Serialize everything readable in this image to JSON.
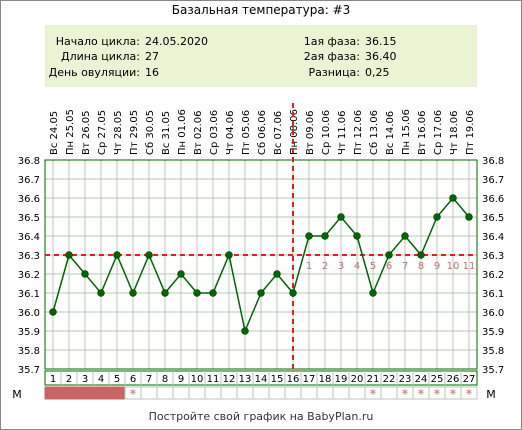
{
  "title": "Базальная температура: #3",
  "info": {
    "left": [
      {
        "label": "Начало цикла:",
        "value": "24.05.2020"
      },
      {
        "label": "Длина цикла:",
        "value": "27"
      },
      {
        "label": "День овуляции:",
        "value": "16"
      }
    ],
    "right": [
      {
        "label": "1ая фаза:",
        "value": "36.15"
      },
      {
        "label": "2ая фаза:",
        "value": "36.40"
      },
      {
        "label": "Разница:",
        "value": "0,25"
      }
    ]
  },
  "footer": "Постройте свой график на BabyPlan.ru",
  "m_label": "М",
  "colors": {
    "line": "#006400",
    "point": "#006400",
    "grid": "#b4c8b4",
    "axis": "#006400",
    "dashed": "#e02020",
    "phase_label": "#c87070",
    "header_bg": "#eaf4d4",
    "m_fill": "#c86464",
    "m_star": "#d05050",
    "border": "#888888"
  },
  "chart_data": {
    "type": "line",
    "title": "Базальная температура: #3",
    "x_dates": [
      "Вс 24.05",
      "Пн 25.05",
      "Вт 26.05",
      "Ср 27.05",
      "Чт 28.05",
      "Пт 29.05",
      "Сб 30.05",
      "Вс 31.05",
      "Пн 01.06",
      "Вт 02.06",
      "Ср 03.06",
      "Чт 04.06",
      "Пт 05.06",
      "Сб 06.06",
      "Вс 07.06",
      "Пн 08.06",
      "Вт 09.06",
      "Ср 10.06",
      "Чт 11.06",
      "Пт 12.06",
      "Сб 13.06",
      "Вс 14.06",
      "Пн 15.06",
      "Вт 16.06",
      "Ср 17.06",
      "Чт 18.06",
      "Пт 19.06"
    ],
    "x_days": [
      1,
      2,
      3,
      4,
      5,
      6,
      7,
      8,
      9,
      10,
      11,
      12,
      13,
      14,
      15,
      16,
      17,
      18,
      19,
      20,
      21,
      22,
      23,
      24,
      25,
      26,
      27
    ],
    "series": [
      {
        "values": [
          36.0,
          36.3,
          36.2,
          36.1,
          36.3,
          36.1,
          36.3,
          36.1,
          36.2,
          36.1,
          36.1,
          36.3,
          35.9,
          36.1,
          36.2,
          36.1,
          36.4,
          36.4,
          36.5,
          36.4,
          36.1,
          36.3,
          36.4,
          36.3,
          36.5,
          36.6,
          36.5
        ]
      }
    ],
    "ylim": [
      35.7,
      36.8
    ],
    "y_ticks": [
      "36.8",
      "36.7",
      "36.6",
      "36.5",
      "36.4",
      "36.3",
      "36.2",
      "36.1",
      "36.0",
      "35.9",
      "35.8",
      "35.7"
    ],
    "coverline": 36.3,
    "ovulation_day": 16,
    "phase_labels": [
      {
        "day": 17,
        "text": "1"
      },
      {
        "day": 18,
        "text": "2"
      },
      {
        "day": 19,
        "text": "3"
      },
      {
        "day": 20,
        "text": "4"
      },
      {
        "day": 21,
        "text": "5"
      },
      {
        "day": 22,
        "text": "6"
      },
      {
        "day": 23,
        "text": "7"
      },
      {
        "day": 24,
        "text": "8"
      },
      {
        "day": 25,
        "text": "9"
      },
      {
        "day": 26,
        "text": "10"
      },
      {
        "day": 27,
        "text": "11"
      }
    ],
    "m_filled_days": [
      1,
      2,
      3,
      4,
      5
    ],
    "m_star_days": [
      6,
      21,
      23,
      24,
      25,
      26,
      27
    ],
    "grid": true
  }
}
